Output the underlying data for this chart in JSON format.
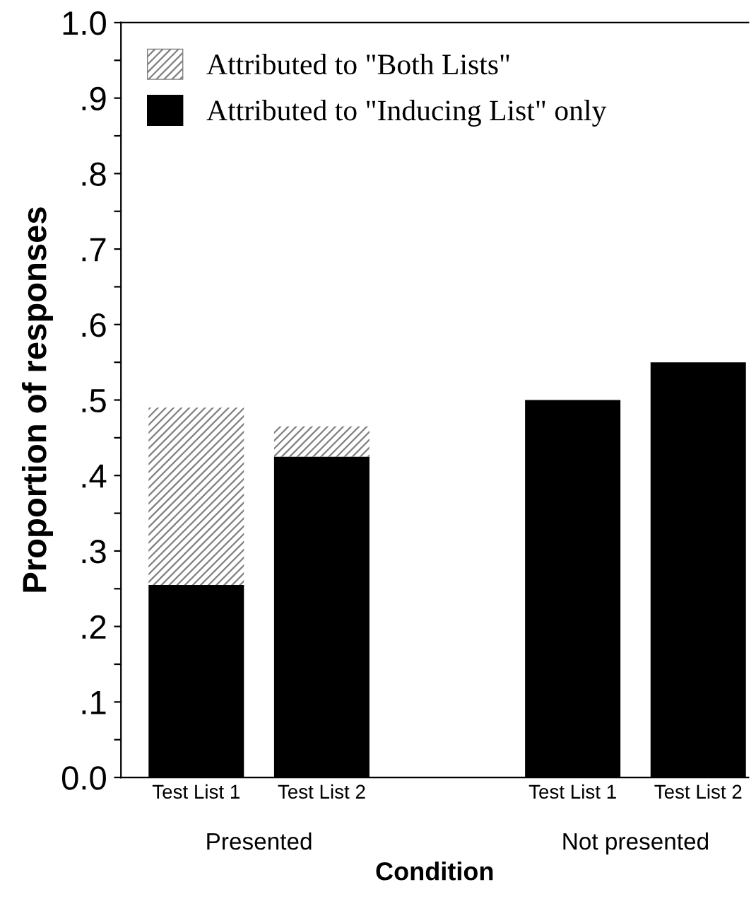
{
  "chart_data": {
    "type": "bar",
    "stacked": true,
    "xlabel": "Condition",
    "ylabel": "Proportion of responses",
    "categories": [
      "Test List 1",
      "Test List 2",
      null,
      "Test List 1",
      "Test List 2"
    ],
    "series": [
      {
        "name": "Attributed to \"Inducing List\" only",
        "color": "#000000",
        "values": [
          0.255,
          0.425,
          null,
          0.5,
          0.55
        ]
      },
      {
        "name": "Attributed to \"Both Lists\"",
        "color": "#808080",
        "values": [
          0.235,
          0.04,
          null,
          0,
          0
        ]
      }
    ],
    "ylim": [
      0,
      1
    ],
    "yticks": [
      {
        "value": 0,
        "label": "0.0"
      },
      {
        "value": 0.05,
        "label": null
      },
      {
        "value": 0.1,
        "label": ".1"
      },
      {
        "value": 0.15,
        "label": null
      },
      {
        "value": 0.2,
        "label": ".2"
      },
      {
        "value": 0.25,
        "label": null
      },
      {
        "value": 0.3,
        "label": ".3"
      },
      {
        "value": 0.35,
        "label": null
      },
      {
        "value": 0.4,
        "label": ".4"
      },
      {
        "value": 0.45,
        "label": null
      },
      {
        "value": 0.5,
        "label": ".5"
      },
      {
        "value": 0.55,
        "label": null
      },
      {
        "value": 0.6,
        "label": ".6"
      },
      {
        "value": 0.65,
        "label": null
      },
      {
        "value": 0.7,
        "label": ".7"
      },
      {
        "value": 0.75,
        "label": null
      },
      {
        "value": 0.8,
        "label": ".8"
      },
      {
        "value": 0.85,
        "label": null
      },
      {
        "value": 0.9,
        "label": ".9"
      },
      {
        "value": 0.95,
        "label": null
      },
      {
        "value": 1,
        "label": "1.0"
      }
    ],
    "annotations": [
      "Presented",
      "Not presented"
    ],
    "legend": "top left",
    "grid": false
  }
}
